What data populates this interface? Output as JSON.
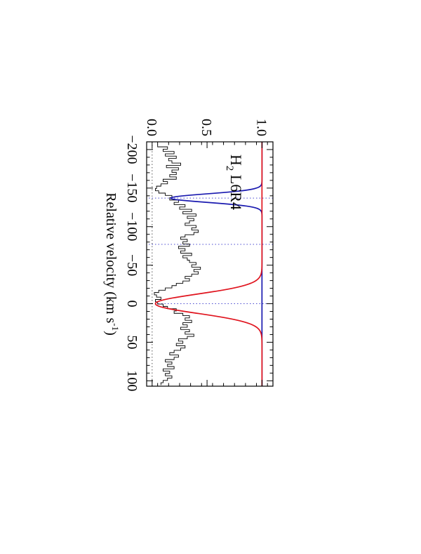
{
  "chart_data": {
    "type": "line",
    "title": "",
    "annotation": "H2 L6R4",
    "annotation_parts": {
      "main": "H",
      "subscript": "2",
      "rest": " L6R4"
    },
    "xlabel_text": "Relative velocity (km s",
    "xlabel_sup": "-1",
    "xlabel_close": ")",
    "ylabel": "",
    "xlim": [
      -210,
      107
    ],
    "ylim": [
      -0.05,
      1.1
    ],
    "xticks": [
      -200,
      -150,
      -100,
      -50,
      0,
      50,
      100
    ],
    "xtick_labels": [
      "−200",
      "−150",
      "−100",
      "−50",
      "0",
      "50",
      "100"
    ],
    "yticks": [
      0.0,
      0.5,
      1.0
    ],
    "ytick_labels": [
      "0.0",
      "0.5",
      "1.0"
    ],
    "reference_lines": {
      "horizontal_dotted": [
        0.0,
        1.0
      ],
      "vertical_dotted": [
        -137,
        -77,
        0
      ]
    },
    "rotation": "plot rotated 90 degrees clockwise on the page",
    "series": [
      {
        "kind": "observed-spectrum-histogram",
        "color": "#000000",
        "x": [
          -205,
          -202,
          -199,
          -196,
          -193,
          -190,
          -187,
          -184,
          -181,
          -178,
          -175,
          -172,
          -169,
          -166,
          -163,
          -160,
          -157,
          -154,
          -151,
          -148,
          -145,
          -142,
          -139,
          -136,
          -133,
          -130,
          -127,
          -124,
          -121,
          -118,
          -115,
          -112,
          -109,
          -106,
          -103,
          -100,
          -97,
          -94,
          -91,
          -88,
          -85,
          -82,
          -79,
          -76,
          -73,
          -70,
          -67,
          -64,
          -61,
          -58,
          -55,
          -52,
          -49,
          -46,
          -43,
          -40,
          -37,
          -34,
          -31,
          -28,
          -25,
          -22,
          -19,
          -16,
          -13,
          -10,
          -7,
          -4,
          -1,
          2,
          5,
          8,
          11,
          14,
          17,
          20,
          23,
          26,
          29,
          32,
          35,
          38,
          41,
          44,
          47,
          50,
          53,
          56,
          59,
          62,
          65,
          68,
          71,
          74,
          77,
          80,
          83,
          86,
          89,
          92,
          95,
          98,
          101,
          104
        ],
        "y": [
          0.05,
          0.14,
          0.1,
          0.2,
          0.12,
          0.22,
          0.15,
          0.18,
          0.26,
          0.13,
          0.24,
          0.18,
          0.22,
          0.16,
          0.22,
          0.1,
          0.14,
          0.08,
          0.04,
          0.03,
          0.06,
          0.12,
          0.18,
          0.16,
          0.24,
          0.2,
          0.3,
          0.25,
          0.36,
          0.28,
          0.4,
          0.32,
          0.38,
          0.34,
          0.3,
          0.4,
          0.36,
          0.42,
          0.38,
          0.3,
          0.26,
          0.32,
          0.28,
          0.34,
          0.24,
          0.3,
          0.26,
          0.36,
          0.28,
          0.32,
          0.34,
          0.4,
          0.36,
          0.44,
          0.38,
          0.42,
          0.36,
          0.3,
          0.34,
          0.28,
          0.22,
          0.18,
          0.12,
          0.06,
          0.02,
          0.04,
          0.08,
          0.03,
          0.05,
          0.1,
          0.14,
          0.22,
          0.2,
          0.28,
          0.34,
          0.3,
          0.36,
          0.28,
          0.32,
          0.26,
          0.34,
          0.3,
          0.38,
          0.32,
          0.24,
          0.28,
          0.22,
          0.3,
          0.26,
          0.2,
          0.16,
          0.24,
          0.2,
          0.12,
          0.18,
          0.14,
          0.2,
          0.1,
          0.16,
          0.12,
          0.18,
          0.14,
          0.1,
          0.08
        ]
      },
      {
        "kind": "model-profile",
        "color": "#1a1ab0",
        "continuum": 1.0,
        "center": -137,
        "depth": 0.83,
        "sigma": 5.5,
        "x_range": [
          -210,
          107
        ]
      },
      {
        "kind": "model-profile",
        "color": "#e0141e",
        "continuum": 1.0,
        "center": 0,
        "depth": 0.97,
        "sigma": 12.5,
        "x_range": [
          -210,
          107
        ]
      }
    ]
  }
}
